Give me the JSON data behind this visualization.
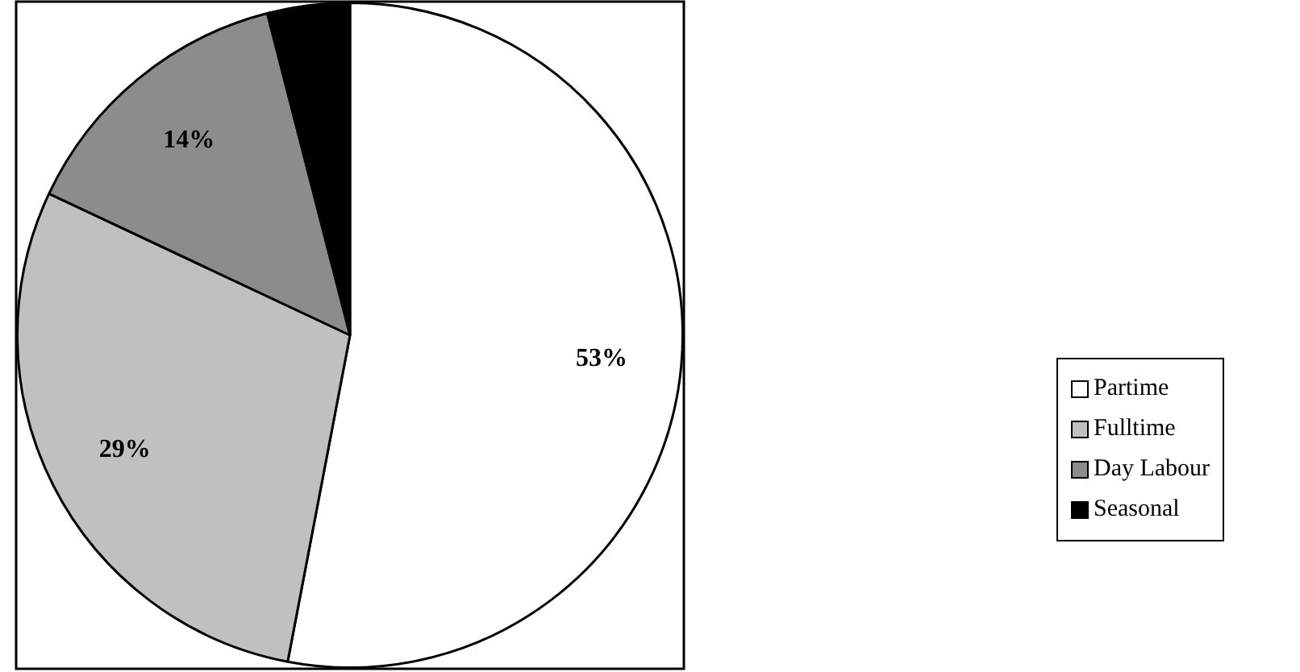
{
  "chart_data": {
    "type": "pie",
    "categories": [
      "Partime",
      "Fulltime",
      "Day Labour",
      "Seasonal"
    ],
    "values": [
      53,
      29,
      14,
      4
    ],
    "colors": [
      "#ffffff",
      "#c0c0c0",
      "#8c8c8c",
      "#000000"
    ],
    "value_labels": [
      "53%",
      "29%",
      "14%",
      null
    ],
    "legend": "right"
  }
}
